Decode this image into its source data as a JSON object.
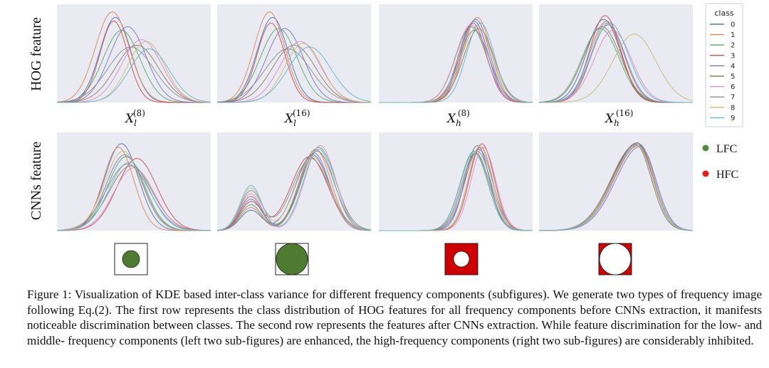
{
  "figure": {
    "row_labels": [
      "HOG feature",
      "CNNs feature"
    ],
    "column_labels": [
      {
        "base": "X",
        "sub": "l",
        "sup": "(8)"
      },
      {
        "base": "X",
        "sub": "l",
        "sup": "(16)"
      },
      {
        "base": "X",
        "sub": "h",
        "sup": "(8)"
      },
      {
        "base": "X",
        "sub": "h",
        "sup": "(16)"
      }
    ],
    "legend": {
      "title": "class",
      "entries": [
        "0",
        "1",
        "2",
        "3",
        "4",
        "5",
        "6",
        "7",
        "8",
        "9"
      ]
    },
    "frequency_legend": [
      {
        "label": "LFC",
        "color": "#4e8c3a"
      },
      {
        "label": "HFC",
        "color": "#e02020"
      }
    ],
    "class_colors": [
      "#4c72b0",
      "#dd8452",
      "#55a868",
      "#c44e52",
      "#8172b3",
      "#937860",
      "#da8bc3",
      "#8c8c8c",
      "#ccb974",
      "#64b5cd"
    ],
    "masks": [
      {
        "name": "lfc-small",
        "fill": "#ffffff",
        "circle": "#4e7a32"
      },
      {
        "name": "lfc-large",
        "fill": "#ffffff",
        "circle": "#4e7a32"
      },
      {
        "name": "hfc-small",
        "fill": "#cc0000",
        "circle": "#ffffff"
      },
      {
        "name": "hfc-large",
        "fill": "#cc0000",
        "circle": "#ffffff"
      }
    ]
  },
  "chart_data": [
    {
      "type": "line",
      "panel": "HOG feature / X_l^(8)",
      "series_count": 10
    },
    {
      "type": "line",
      "panel": "HOG feature / X_l^(16)",
      "series_count": 10
    },
    {
      "type": "line",
      "panel": "HOG feature / X_h^(8)",
      "series_count": 10
    },
    {
      "type": "line",
      "panel": "HOG feature / X_h^(16)",
      "series_count": 10
    },
    {
      "type": "line",
      "panel": "CNNs feature / X_l^(8)",
      "series_count": 10
    },
    {
      "type": "line",
      "panel": "CNNs feature / X_l^(16)",
      "series_count": 10
    },
    {
      "type": "line",
      "panel": "CNNs feature / X_h^(8)",
      "series_count": 10
    },
    {
      "type": "line",
      "panel": "CNNs feature / X_h^(16)",
      "series_count": 10
    }
  ],
  "caption": {
    "text": "Figure 1: Visualization of KDE based inter-class variance for different frequency components (subfigures). We generate two types of frequency image following Eq.(2). The first row represents the class distribution of HOG features for all frequency components before CNNs extraction, it manifests noticeable discrimination between classes. The second row represents the features after CNNs extraction. While feature discrimination for the low- and middle- frequency components (left two sub-figures) are enhanced, the high-frequency components (right two sub-figures) are considerably inhibited."
  }
}
